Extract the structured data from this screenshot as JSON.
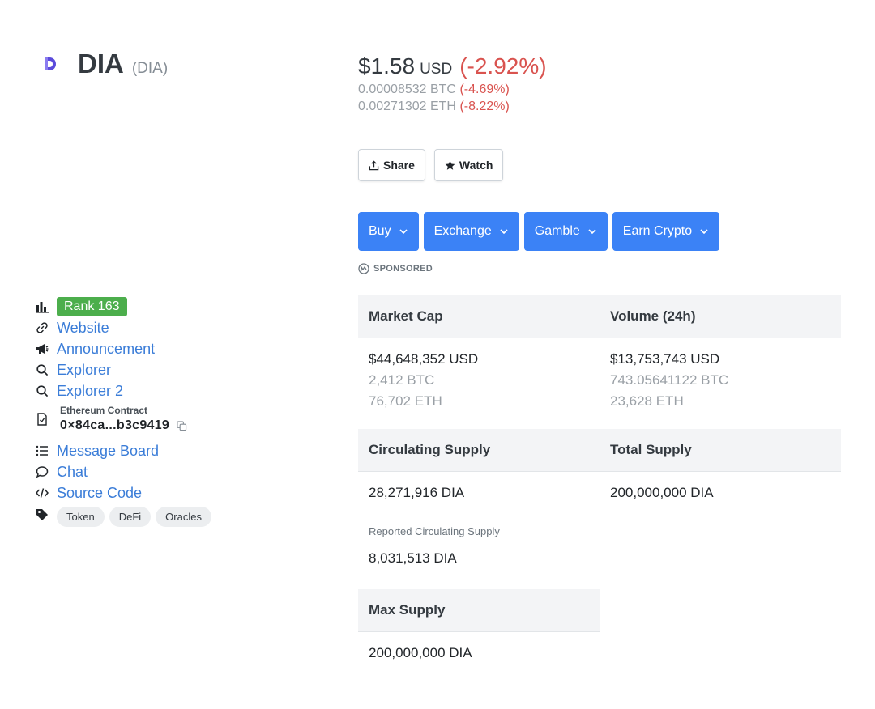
{
  "coin": {
    "name": "DIA",
    "symbol": "(DIA)",
    "logo_color": "#5b4bdb"
  },
  "sidebar": {
    "rank": "Rank 163",
    "links": [
      {
        "label": "Website",
        "icon": "link-icon"
      },
      {
        "label": "Announcement",
        "icon": "megaphone-icon"
      },
      {
        "label": "Explorer",
        "icon": "search-icon"
      },
      {
        "label": "Explorer 2",
        "icon": "search-icon"
      }
    ],
    "contract": {
      "label": "Ethereum Contract",
      "address": "0×84ca...b3c9419"
    },
    "links2": [
      {
        "label": "Message Board",
        "icon": "list-icon"
      },
      {
        "label": "Chat",
        "icon": "chat-icon"
      },
      {
        "label": "Source Code",
        "icon": "code-icon"
      }
    ],
    "tags": [
      "Token",
      "DeFi",
      "Oracles"
    ]
  },
  "price": {
    "value": "$1.58",
    "currency": "USD",
    "change": "(-2.92%)",
    "btc_value": "0.00008532 BTC",
    "btc_change": "(-4.69%)",
    "eth_value": "0.00271302 ETH",
    "eth_change": "(-8.22%)"
  },
  "actions": {
    "share": "Share",
    "watch": "Watch"
  },
  "dropdowns": [
    "Buy",
    "Exchange",
    "Gamble",
    "Earn Crypto"
  ],
  "sponsored": "SPONSORED",
  "stats": {
    "market_cap": {
      "label": "Market Cap",
      "usd": "$44,648,352 USD",
      "btc": "2,412 BTC",
      "eth": "76,702 ETH"
    },
    "volume": {
      "label": "Volume (24h)",
      "usd": "$13,753,743 USD",
      "btc": "743.05641122 BTC",
      "eth": "23,628 ETH"
    },
    "circulating": {
      "label": "Circulating Supply",
      "value": "28,271,916 DIA",
      "reported_label": "Reported Circulating Supply",
      "reported_value": "8,031,513 DIA"
    },
    "total": {
      "label": "Total Supply",
      "value": "200,000,000 DIA"
    },
    "max": {
      "label": "Max Supply",
      "value": "200,000,000 DIA"
    }
  },
  "colors": {
    "accent": "#3b82f6",
    "negative": "#d9534f",
    "rank": "#4cae4c",
    "link": "#3b7dd8"
  }
}
